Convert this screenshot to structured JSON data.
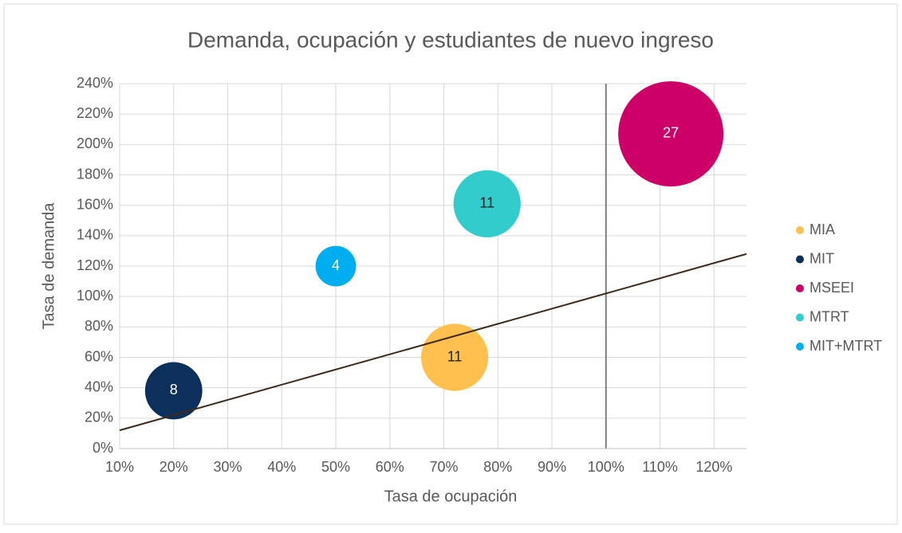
{
  "chart_data": {
    "type": "bubble",
    "title": "Demanda, ocupación y estudiantes de nuevo ingreso",
    "x_label": "Tasa de ocupación",
    "y_label": "Tasa de demanda",
    "xlim": [
      10,
      126
    ],
    "ylim": [
      0,
      240
    ],
    "xticks": [
      {
        "value": 10,
        "label": "10%"
      },
      {
        "value": 20,
        "label": "20%"
      },
      {
        "value": 30,
        "label": "30%"
      },
      {
        "value": 40,
        "label": "40%"
      },
      {
        "value": 50,
        "label": "50%"
      },
      {
        "value": 60,
        "label": "60%"
      },
      {
        "value": 70,
        "label": "70%"
      },
      {
        "value": 80,
        "label": "80%"
      },
      {
        "value": 90,
        "label": "90%"
      },
      {
        "value": 100,
        "label": "100%"
      },
      {
        "value": 110,
        "label": "110%"
      },
      {
        "value": 120,
        "label": "120%"
      }
    ],
    "yticks": [
      {
        "value": 0,
        "label": "0%"
      },
      {
        "value": 20,
        "label": "20%"
      },
      {
        "value": 40,
        "label": "40%"
      },
      {
        "value": 60,
        "label": "60%"
      },
      {
        "value": 80,
        "label": "80%"
      },
      {
        "value": 100,
        "label": "100%"
      },
      {
        "value": 120,
        "label": "120%"
      },
      {
        "value": 140,
        "label": "140%"
      },
      {
        "value": 160,
        "label": "160%"
      },
      {
        "value": 180,
        "label": "180%"
      },
      {
        "value": 200,
        "label": "200%"
      },
      {
        "value": 220,
        "label": "220%"
      },
      {
        "value": 240,
        "label": "240%"
      }
    ],
    "grid": true,
    "legend": "right",
    "vline": 100,
    "trendline": {
      "x": [
        10,
        126
      ],
      "y": [
        12,
        128
      ],
      "color": "#3d2a1a"
    },
    "series": [
      {
        "name": "MIA",
        "color": "#ffc04d",
        "x": [
          72
        ],
        "values": [
          60
        ],
        "sizes": [
          11
        ]
      },
      {
        "name": "MIT",
        "color": "#0d2f5c",
        "x": [
          20
        ],
        "values": [
          38
        ],
        "sizes": [
          8
        ]
      },
      {
        "name": "MSEEI",
        "color": "#cc0066",
        "x": [
          112
        ],
        "values": [
          207
        ],
        "sizes": [
          27
        ]
      },
      {
        "name": "MTRT",
        "color": "#33cccc",
        "x": [
          78
        ],
        "values": [
          161
        ],
        "sizes": [
          11
        ]
      },
      {
        "name": "MIT+MTRT",
        "color": "#00aeef",
        "x": [
          50
        ],
        "values": [
          120
        ],
        "sizes": [
          4
        ]
      }
    ]
  }
}
